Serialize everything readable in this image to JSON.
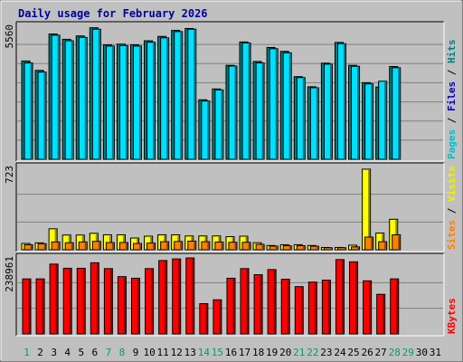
{
  "chart_data": [
    {
      "title": "Daily usage for February 2026",
      "type": "bar",
      "categories": [
        "1",
        "2",
        "3",
        "4",
        "5",
        "6",
        "7",
        "8",
        "9",
        "10",
        "11",
        "12",
        "13",
        "14",
        "15",
        "16",
        "17",
        "18",
        "19",
        "20",
        "21",
        "22",
        "23",
        "24",
        "25",
        "26",
        "27",
        "28",
        "29",
        "30",
        "31"
      ],
      "weekend_days": [
        "1",
        "7",
        "8",
        "14",
        "15",
        "21",
        "22",
        "28",
        "29"
      ],
      "panels": [
        {
          "id": "hits",
          "ymax_label": "5560",
          "ylim": [
            0,
            5560
          ],
          "axis_title_parts": [
            {
              "text": "Pages",
              "color": "#00c0d0"
            },
            {
              "text": " / ",
              "color": "#000000"
            },
            {
              "text": "Files",
              "color": "#0000c0"
            },
            {
              "text": " / ",
              "color": "#000000"
            },
            {
              "text": "Hits",
              "color": "#008080"
            }
          ],
          "series": [
            {
              "name": "Hits",
              "color": "#008080",
              "values": [
                4080,
                3690,
                5200,
                4980,
                5120,
                5460,
                4750,
                4780,
                4750,
                4920,
                5100,
                5350,
                5430,
                2470,
                2920,
                3900,
                4870,
                4060,
                4640,
                4480,
                3430,
                3010,
                3990,
                4850,
                3900,
                3180,
                3000,
                3850,
                null,
                null,
                null
              ]
            },
            {
              "name": "Pages",
              "color": "#00e0ff",
              "values": [
                4000,
                3620,
                5150,
                4920,
                5060,
                5400,
                4700,
                4720,
                4700,
                4860,
                5040,
                5300,
                5400,
                2420,
                2880,
                3870,
                4830,
                4000,
                4590,
                4420,
                3390,
                2970,
                3950,
                4800,
                3860,
                3130,
                3240,
                3800,
                null,
                null,
                null
              ]
            }
          ]
        },
        {
          "id": "visits",
          "ymax_label": "723",
          "ylim": [
            0,
            723
          ],
          "axis_title_parts": [
            {
              "text": "Sites",
              "color": "#ff8000"
            },
            {
              "text": " / ",
              "color": "#000000"
            },
            {
              "text": "Visits",
              "color": "#f0f000"
            }
          ],
          "series": [
            {
              "name": "Visits",
              "color": "#ffff00",
              "values": [
                55,
                60,
                182,
                128,
                128,
                143,
                130,
                130,
                102,
                118,
                130,
                130,
                120,
                120,
                120,
                114,
                118,
                61,
                37,
                44,
                44,
                37,
                20,
                20,
                40,
                700,
                145,
                265,
                null,
                null,
                null
              ]
            },
            {
              "name": "Sites",
              "color": "#ff8000",
              "values": [
                44,
                53,
                68,
                61,
                68,
                73,
                63,
                63,
                55,
                58,
                70,
                72,
                75,
                70,
                67,
                65,
                65,
                47,
                32,
                35,
                35,
                31,
                18,
                18,
                25,
                110,
                70,
                130,
                null,
                null,
                null
              ]
            }
          ]
        },
        {
          "id": "kbytes",
          "ymax_label": "238961",
          "ylim": [
            0,
            238961
          ],
          "axis_title_parts": [
            {
              "text": "KBytes",
              "color": "#ff0000"
            }
          ],
          "series": [
            {
              "name": "KBytes",
              "color": "#ff0000",
              "values": [
                171000,
                171000,
                217000,
                204000,
                204000,
                221000,
                203000,
                178000,
                173000,
                203000,
                228000,
                233000,
                236000,
                94000,
                106000,
                173000,
                203000,
                184000,
                200000,
                170000,
                147000,
                161000,
                167000,
                231000,
                224000,
                165000,
                123000,
                171000,
                null,
                null,
                null
              ]
            }
          ]
        }
      ]
    }
  ]
}
